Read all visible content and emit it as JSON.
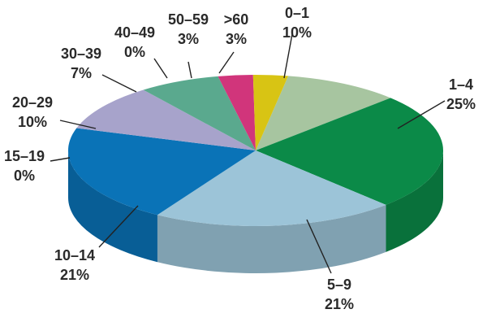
{
  "chart_data": {
    "type": "pie",
    "title": "",
    "legend": "none",
    "slices": [
      {
        "label": "0–1",
        "value": 10,
        "value_label": "10%",
        "color": "#a7c5a0"
      },
      {
        "label": "1–4",
        "value": 25,
        "value_label": "25%",
        "color": "#0b8a48"
      },
      {
        "label": "5–9",
        "value": 21,
        "value_label": "21%",
        "color": "#9cc4d8"
      },
      {
        "label": "10–14",
        "value": 21,
        "value_label": "21%",
        "color": "#0a73b7"
      },
      {
        "label": "15–19",
        "value": 0,
        "value_label": "0%",
        "color": "#0a73b7"
      },
      {
        "label": "20–29",
        "value": 10,
        "value_label": "10%",
        "color": "#a7a3cb"
      },
      {
        "label": "30–39",
        "value": 7,
        "value_label": "7%",
        "color": "#5aa98e"
      },
      {
        "label": "40–49",
        "value": 0,
        "value_label": "0%",
        "color": "#5aa98e"
      },
      {
        "label": "50–59",
        "value": 3,
        "value_label": "3%",
        "color": "#d1357b"
      },
      {
        "label": ">60",
        "value": 3,
        "value_label": "3%",
        "color": "#d8c414"
      }
    ]
  }
}
